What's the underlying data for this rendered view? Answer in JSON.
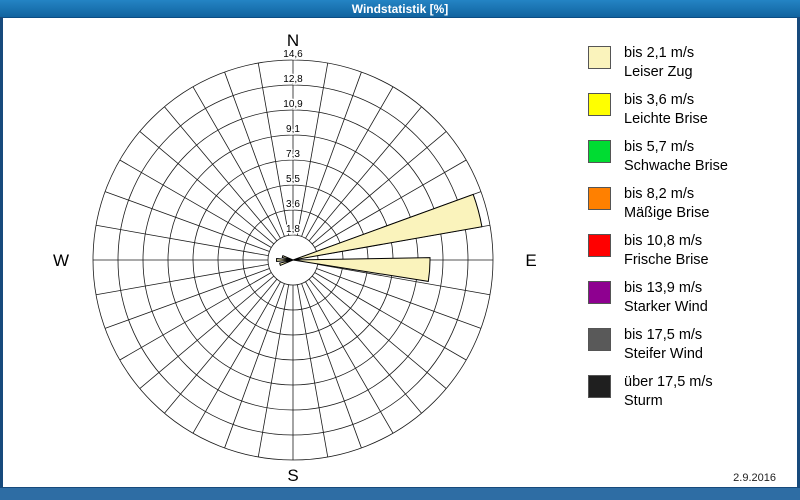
{
  "window": {
    "title": "Windstatistik [%]",
    "date": "2.9.2016"
  },
  "colors": {
    "titlebar": "#11639f",
    "frame": "#174a7c",
    "bottombar": "#2e6da4",
    "grid": "#1a1a1a",
    "petal_outline": "#000000"
  },
  "chart_data": {
    "type": "windrose",
    "title": "Windstatistik [%]",
    "units": "%",
    "compass_labels": [
      "N",
      "E",
      "S",
      "W"
    ],
    "ring_values": [
      1.8,
      3.6,
      5.5,
      7.3,
      9.1,
      10.9,
      12.8,
      14.6
    ],
    "ring_labels": [
      "1,8",
      "3,6",
      "5,5",
      "7,3",
      "9,1",
      "10,9",
      "12,8",
      "14,6"
    ],
    "max_value": 14.6,
    "sectors": 36,
    "sector_width_deg": 10,
    "grid": true,
    "legend_position": "right",
    "petals": [
      {
        "direction_deg": 75,
        "value": 14.0,
        "class_index": 0
      },
      {
        "direction_deg": 94,
        "value": 10.0,
        "class_index": 0
      },
      {
        "direction_deg": 252,
        "value": 1.0,
        "class_index": 0
      },
      {
        "direction_deg": 270,
        "value": 1.2,
        "class_index": 0
      },
      {
        "direction_deg": 288,
        "value": 0.8,
        "class_index": 0
      }
    ],
    "legend": [
      {
        "color": "#FAF3BC",
        "line1": "bis 2,1 m/s",
        "line2": "Leiser Zug"
      },
      {
        "color": "#FFFF00",
        "line1": "bis 3,6 m/s",
        "line2": "Leichte Brise"
      },
      {
        "color": "#00DC32",
        "line1": "bis 5,7 m/s",
        "line2": "Schwache Brise"
      },
      {
        "color": "#FF8000",
        "line1": "bis 8,2 m/s",
        "line2": "Mäßige Brise"
      },
      {
        "color": "#FF0000",
        "line1": "bis 10,8 m/s",
        "line2": "Frische Brise"
      },
      {
        "color": "#8E0090",
        "line1": "bis 13,9 m/s",
        "line2": "Starker Wind"
      },
      {
        "color": "#595959",
        "line1": "bis 17,5 m/s",
        "line2": "Steifer Wind"
      },
      {
        "color": "#1F1F1F",
        "line1": "über 17,5 m/s",
        "line2": "Sturm"
      }
    ]
  }
}
